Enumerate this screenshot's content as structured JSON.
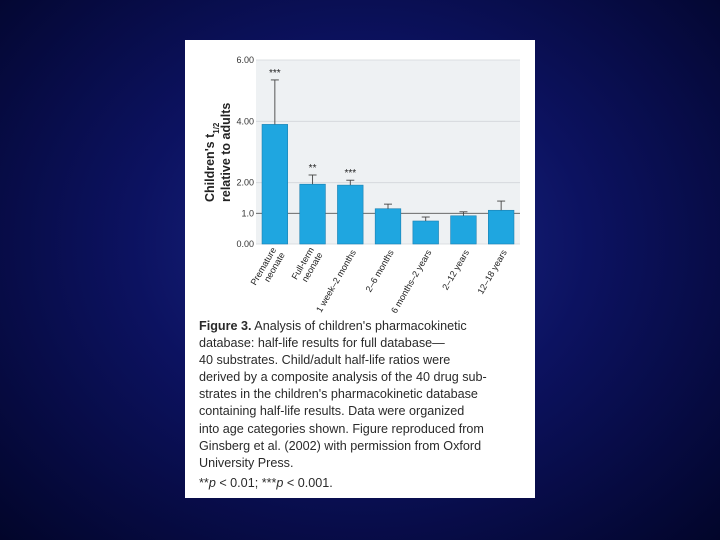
{
  "chart_data": {
    "type": "bar",
    "categories": [
      "Premature neonate",
      "Full-term neonate",
      "1 week–2 months",
      "2–6 months",
      "6 months–2 years",
      "2–12 years",
      "12–18 years"
    ],
    "category_lines": [
      [
        "Premature",
        "neonate"
      ],
      [
        "Full-term",
        "neonate"
      ],
      [
        "1 week–2 months"
      ],
      [
        "2–6 months"
      ],
      [
        "6 months–2 years"
      ],
      [
        "2–12 years"
      ],
      [
        "12–18 years"
      ]
    ],
    "values": [
      3.9,
      1.95,
      1.92,
      1.15,
      0.75,
      0.92,
      1.1
    ],
    "error_upper": [
      5.35,
      2.25,
      2.08,
      1.3,
      0.88,
      1.05,
      1.4
    ],
    "significance": [
      "***",
      "**",
      "***",
      "",
      "",
      "",
      ""
    ],
    "ylim": [
      0,
      6
    ],
    "yticks": [
      0,
      1,
      2,
      4,
      6
    ],
    "ytick_labels": [
      "0.00",
      "1.0",
      "2.00",
      "4.00",
      "6.00"
    ],
    "reference_line": 1.0,
    "bar_color": "#1fa6e0",
    "ylabel_line1": "Children's t",
    "ylabel_subscript": "1/2",
    "ylabel_line2": "relative to adults"
  },
  "caption": {
    "title": "Figure 3.",
    "line1": " Analysis of children's pharmacokinetic",
    "line2": "database: half-life results for full database—",
    "line3": "40 substrates. Child/adult half-life ratios were",
    "line4": "derived by a composite analysis of the 40 drug sub-",
    "line5": "strates in the children's pharmacokinetic database",
    "line6": "containing half-life results. Data were organized",
    "line7": "into age categories shown. Figure reproduced from",
    "line8": "Ginsberg et al. (2002) with permission from Oxford",
    "line9": "University Press.",
    "footnote_stars1": "**",
    "footnote_p1": "p",
    "footnote_val1": " < 0.01; ",
    "footnote_stars2": "***",
    "footnote_p2": "p",
    "footnote_val2": " < 0.001."
  }
}
